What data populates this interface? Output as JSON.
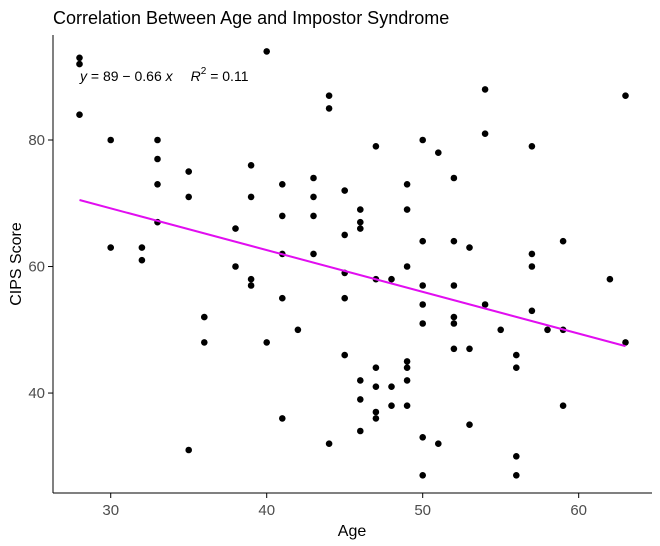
{
  "chart_data": {
    "type": "scatter",
    "title": "Correlation Between Age and Impostor Syndrome",
    "xlabel": "Age",
    "ylabel": "CIPS Score",
    "xlim": [
      26.3,
      64.7
    ],
    "ylim": [
      24.2,
      96.6
    ],
    "xticks": [
      "30",
      "40",
      "50",
      "60"
    ],
    "yticks": [
      "40",
      "60",
      "80"
    ],
    "grid": false,
    "colors": {
      "points": "#000000",
      "regression_line": "#e10ef0",
      "axis": "#000000",
      "tick_text": "#4d4d4d"
    },
    "annotation": {
      "y_var": "y",
      "equation_rest": " = 89 − 0.66 ",
      "x_var": "x",
      "r2_var": "R",
      "r2_sup": "2",
      "r2_rest": " = 0.11"
    },
    "regression": {
      "intercept": 89,
      "slope": -0.66,
      "x_range": [
        28,
        63
      ]
    },
    "points": [
      [
        28,
        93
      ],
      [
        28,
        92
      ],
      [
        28,
        84
      ],
      [
        30,
        80
      ],
      [
        30,
        63
      ],
      [
        32,
        63
      ],
      [
        32,
        61
      ],
      [
        33,
        80
      ],
      [
        33,
        77
      ],
      [
        33,
        73
      ],
      [
        33,
        67
      ],
      [
        35,
        75
      ],
      [
        35,
        71
      ],
      [
        35,
        31
      ],
      [
        36,
        52
      ],
      [
        36,
        48
      ],
      [
        38,
        66
      ],
      [
        38,
        60
      ],
      [
        39,
        76
      ],
      [
        39,
        71
      ],
      [
        39,
        58
      ],
      [
        39,
        57
      ],
      [
        40,
        94
      ],
      [
        40,
        48
      ],
      [
        41,
        73
      ],
      [
        41,
        68
      ],
      [
        41,
        62
      ],
      [
        41,
        55
      ],
      [
        41,
        36
      ],
      [
        42,
        50
      ],
      [
        43,
        74
      ],
      [
        43,
        71
      ],
      [
        43,
        68
      ],
      [
        43,
        62
      ],
      [
        44,
        87
      ],
      [
        44,
        85
      ],
      [
        44,
        32
      ],
      [
        45,
        72
      ],
      [
        45,
        65
      ],
      [
        45,
        59
      ],
      [
        45,
        55
      ],
      [
        45,
        46
      ],
      [
        46,
        69
      ],
      [
        46,
        67
      ],
      [
        46,
        66
      ],
      [
        46,
        42
      ],
      [
        46,
        39
      ],
      [
        46,
        34
      ],
      [
        47,
        79
      ],
      [
        47,
        58
      ],
      [
        47,
        44
      ],
      [
        47,
        41
      ],
      [
        47,
        37
      ],
      [
        47,
        36
      ],
      [
        48,
        58
      ],
      [
        48,
        41
      ],
      [
        48,
        38
      ],
      [
        49,
        73
      ],
      [
        49,
        69
      ],
      [
        49,
        60
      ],
      [
        49,
        45
      ],
      [
        49,
        44
      ],
      [
        49,
        42
      ],
      [
        49,
        38
      ],
      [
        50,
        80
      ],
      [
        50,
        64
      ],
      [
        50,
        57
      ],
      [
        50,
        54
      ],
      [
        50,
        51
      ],
      [
        50,
        33
      ],
      [
        50,
        27
      ],
      [
        51,
        78
      ],
      [
        51,
        32
      ],
      [
        52,
        74
      ],
      [
        52,
        64
      ],
      [
        52,
        57
      ],
      [
        52,
        52
      ],
      [
        52,
        51
      ],
      [
        52,
        47
      ],
      [
        53,
        63
      ],
      [
        53,
        47
      ],
      [
        53,
        35
      ],
      [
        54,
        88
      ],
      [
        54,
        81
      ],
      [
        54,
        54
      ],
      [
        55,
        50
      ],
      [
        56,
        46
      ],
      [
        56,
        44
      ],
      [
        56,
        30
      ],
      [
        56,
        27
      ],
      [
        57,
        79
      ],
      [
        57,
        62
      ],
      [
        57,
        60
      ],
      [
        57,
        53
      ],
      [
        58,
        50
      ],
      [
        59,
        64
      ],
      [
        59,
        50
      ],
      [
        59,
        38
      ],
      [
        62,
        58
      ],
      [
        63,
        87
      ],
      [
        63,
        48
      ]
    ]
  }
}
